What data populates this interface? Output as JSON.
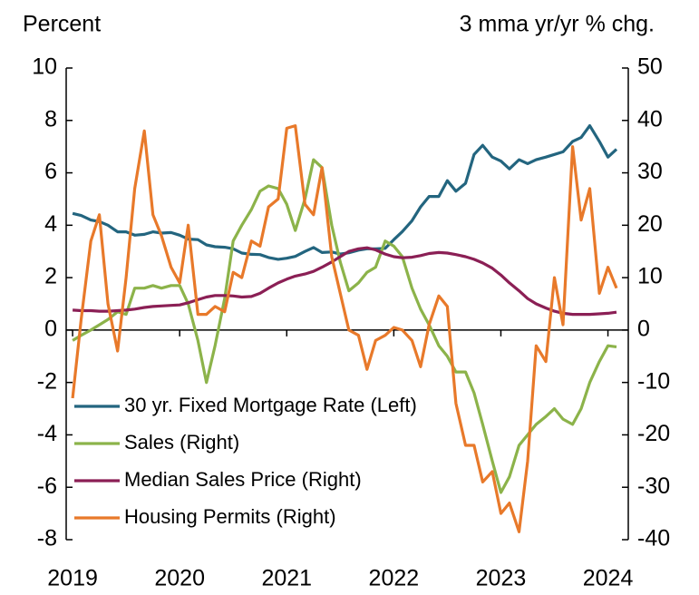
{
  "chart_data": {
    "type": "line",
    "ylabel": "Percent",
    "y2label": "3 mma yr/yr % chg.",
    "x": [
      2019,
      2019.08,
      2019.17,
      2019.25,
      2019.33,
      2019.42,
      2019.5,
      2019.58,
      2019.67,
      2019.75,
      2019.83,
      2019.92,
      2020,
      2020.08,
      2020.17,
      2020.25,
      2020.33,
      2020.42,
      2020.5,
      2020.58,
      2020.67,
      2020.75,
      2020.83,
      2020.92,
      2021,
      2021.08,
      2021.17,
      2021.25,
      2021.33,
      2021.42,
      2021.5,
      2021.58,
      2021.67,
      2021.75,
      2021.83,
      2021.92,
      2022,
      2022.08,
      2022.17,
      2022.25,
      2022.33,
      2022.42,
      2022.5,
      2022.58,
      2022.67,
      2022.75,
      2022.83,
      2022.92,
      2023,
      2023.08,
      2023.17,
      2023.25,
      2023.33,
      2023.42,
      2023.5,
      2023.58,
      2023.67,
      2023.75,
      2023.83,
      2023.92,
      2024,
      2024.08
    ],
    "xlim": [
      2018.94,
      2024.19
    ],
    "xticks": [
      2019,
      2020,
      2021,
      2022,
      2023,
      2024
    ],
    "ylim": [
      -8,
      10
    ],
    "yticks": [
      -8,
      -6,
      -4,
      -2,
      0,
      2,
      4,
      6,
      8,
      10
    ],
    "y2lim": [
      -40,
      50
    ],
    "y2ticks": [
      -40,
      -30,
      -20,
      -10,
      0,
      10,
      20,
      30,
      40,
      50
    ],
    "series": [
      {
        "name": "30 yr. Fixed Mortgage Rate (Left)",
        "color": "#23657f",
        "axis": "y",
        "values": [
          4.45,
          4.37,
          4.2,
          4.14,
          4.0,
          3.75,
          3.75,
          3.62,
          3.65,
          3.75,
          3.7,
          3.72,
          3.62,
          3.47,
          3.45,
          3.25,
          3.18,
          3.16,
          3.1,
          2.94,
          2.89,
          2.88,
          2.77,
          2.7,
          2.74,
          2.81,
          3.0,
          3.15,
          2.96,
          2.98,
          2.9,
          2.95,
          3.05,
          3.1,
          3.1,
          3.12,
          3.45,
          3.76,
          4.17,
          4.7,
          5.1,
          5.1,
          5.7,
          5.3,
          5.6,
          6.7,
          7.05,
          6.6,
          6.45,
          6.15,
          6.5,
          6.35,
          6.5,
          6.6,
          6.7,
          6.8,
          7.2,
          7.35,
          7.8,
          7.2,
          6.6,
          6.9
        ]
      },
      {
        "name": "Sales (Right)",
        "color": "#8cb34a",
        "axis": "y2",
        "values": [
          -2,
          -1,
          0,
          1,
          2,
          3.5,
          3,
          8,
          8,
          8.5,
          8,
          8.5,
          8.5,
          5,
          -2,
          -10,
          -3,
          6,
          17,
          20,
          23,
          26.5,
          27.5,
          27,
          24,
          19,
          25,
          32.5,
          31,
          20,
          13,
          7.5,
          9,
          11,
          12,
          17,
          16,
          14,
          8,
          4,
          1,
          -3,
          -5,
          -8,
          -8,
          -12,
          -18,
          -25,
          -31,
          -28,
          -22,
          -20,
          -18,
          -16.5,
          -15,
          -17,
          -18,
          -15,
          -10,
          -6,
          -3,
          -3.2
        ]
      },
      {
        "name": "Median Sales Price (Right)",
        "color": "#8b1f55",
        "axis": "y2",
        "values": [
          3.8,
          3.7,
          3.7,
          3.6,
          3.6,
          3.7,
          3.8,
          4.0,
          4.3,
          4.5,
          4.6,
          4.7,
          4.8,
          5.2,
          5.8,
          6.3,
          6.6,
          6.6,
          6.5,
          6.3,
          6.4,
          7,
          8,
          9,
          9.7,
          10.3,
          10.7,
          11.2,
          12,
          13,
          14,
          15,
          15.5,
          15.7,
          15.3,
          14.5,
          14,
          13.8,
          13.9,
          14.2,
          14.6,
          14.8,
          14.7,
          14.4,
          14,
          13.5,
          12.8,
          11.8,
          10.5,
          9,
          7.5,
          6,
          5,
          4.2,
          3.6,
          3.2,
          3.0,
          3.0,
          3.0,
          3.1,
          3.2,
          3.4
        ]
      },
      {
        "name": "Housing Permits (Right)",
        "color": "#e8792a",
        "axis": "y2",
        "values": [
          -13,
          2,
          17,
          22,
          5,
          -4,
          10,
          27,
          38,
          22,
          18,
          12,
          9,
          20,
          3,
          3,
          4.5,
          3.5,
          11,
          10,
          17,
          16,
          23.5,
          25,
          38.5,
          39,
          24,
          22,
          31,
          14,
          7,
          0,
          -1,
          -7.5,
          -2,
          -1,
          0.5,
          0,
          -2,
          -7,
          1,
          6.5,
          4.5,
          -14,
          -22,
          -22,
          -29,
          -27,
          -35,
          -33,
          -38.5,
          -25,
          -3,
          -6,
          10,
          1,
          35,
          21,
          27,
          7,
          12,
          8
        ]
      }
    ]
  }
}
